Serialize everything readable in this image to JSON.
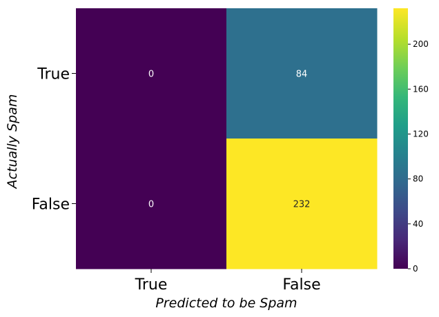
{
  "chart_data": {
    "type": "heatmap",
    "title": "",
    "xlabel": "Predicted to be Spam",
    "ylabel": "Actually Spam",
    "x_categories": [
      "True",
      "False"
    ],
    "y_categories": [
      "True",
      "False"
    ],
    "values": [
      [
        0,
        84
      ],
      [
        0,
        232
      ]
    ],
    "annotations": true,
    "colormap": "viridis",
    "colorbar": {
      "range": [
        0,
        232
      ],
      "ticks": [
        0,
        40,
        80,
        120,
        160,
        200
      ]
    },
    "colors": {
      "low": "#440154",
      "mid": "#2e6e8e",
      "high": "#fde725"
    }
  }
}
